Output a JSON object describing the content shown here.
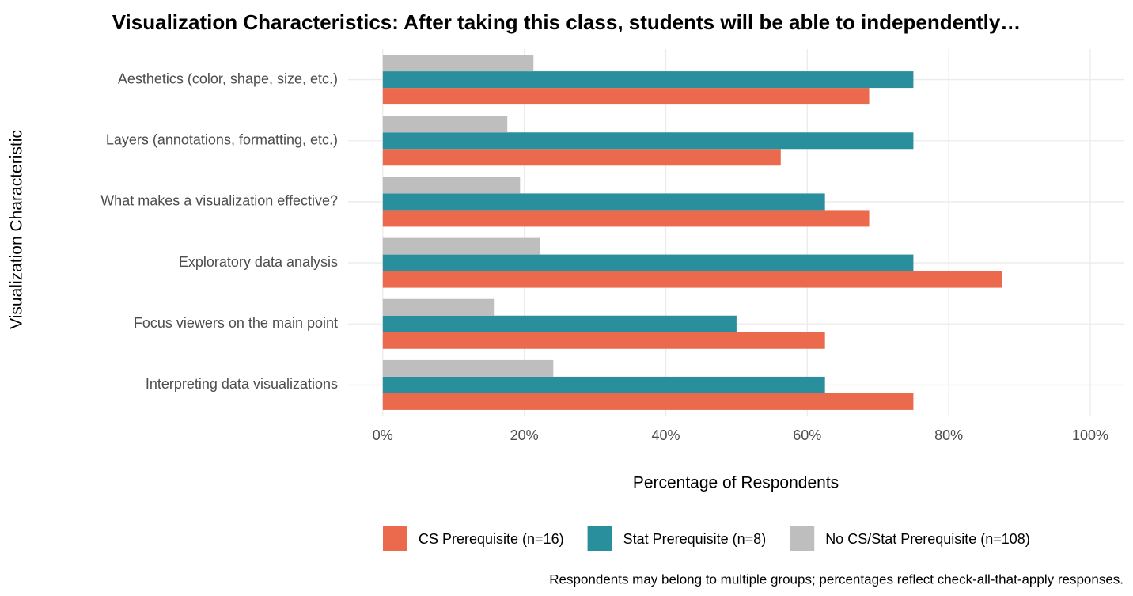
{
  "chart_data": {
    "type": "bar",
    "orientation": "horizontal",
    "title": "Visualization Characteristics: After taking this class, students will be able to independently…",
    "x_label": "Percentage of Respondents",
    "y_label": "Visualization Characteristic",
    "caption": "Respondents may belong to multiple groups; percentages reflect check-all-that-apply responses.",
    "categories": [
      "Aesthetics (color, shape, size, etc.)",
      "Layers (annotations, formatting, etc.)",
      "What makes a visualization effective?",
      "Exploratory data analysis",
      "Focus viewers on the main point",
      "Interpreting data visualizations"
    ],
    "series": [
      {
        "name": "CS Prerequisite (n=16)",
        "color": "#eb6a4d",
        "values": [
          68.75,
          56.25,
          68.75,
          87.5,
          62.5,
          75
        ]
      },
      {
        "name": "Stat Prerequisite (n=8)",
        "color": "#2a8f9c",
        "values": [
          75,
          75,
          62.5,
          75,
          50,
          62.5
        ]
      },
      {
        "name": "No CS/Stat Prerequisite (n=108)",
        "color": "#bebebe",
        "values": [
          21.3,
          17.6,
          19.4,
          22.2,
          15.7,
          24.1
        ]
      }
    ],
    "xlim": [
      -4.9,
      104.7
    ],
    "xticks": [
      {
        "value": 0,
        "label": "0%"
      },
      {
        "value": 20,
        "label": "20%"
      },
      {
        "value": 40,
        "label": "40%"
      },
      {
        "value": 60,
        "label": "60%"
      },
      {
        "value": 80,
        "label": "80%"
      },
      {
        "value": 100,
        "label": "100%"
      }
    ],
    "grid": true,
    "legend": "bottom"
  }
}
